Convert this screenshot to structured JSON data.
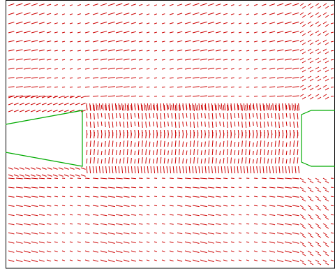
{
  "plot": {
    "kind": "velocity vector field",
    "vector_color": "#cc0000",
    "boundary_color": "#00aa00",
    "frame_color": "#000000",
    "background": "#ffffff"
  }
}
